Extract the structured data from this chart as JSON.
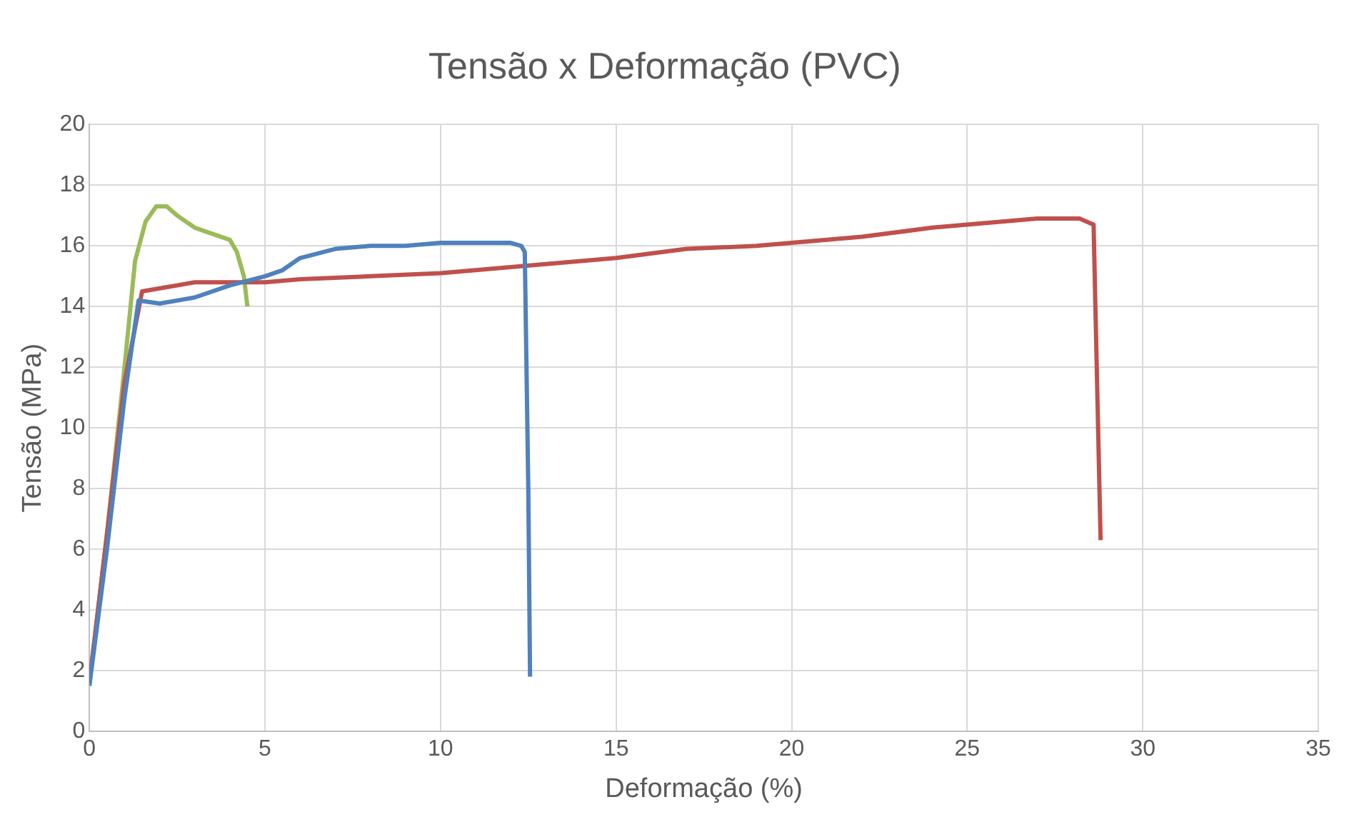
{
  "chart_data": {
    "type": "line",
    "title": "Tensão x Deformação (PVC)",
    "xlabel": "Deformação (%)",
    "ylabel": "Tensão (MPa)",
    "xlim": [
      0,
      35
    ],
    "xticks": [
      0,
      5,
      10,
      15,
      20,
      25,
      30,
      35
    ],
    "ylim": [
      0,
      20
    ],
    "yticks": [
      0,
      2,
      4,
      6,
      8,
      10,
      12,
      14,
      16,
      18,
      20
    ],
    "grid": true,
    "marker": "none",
    "line_style": "solid",
    "series": [
      {
        "color": "#4f81bd",
        "x": [
          0,
          0.5,
          1,
          1.4,
          2,
          3,
          4,
          5,
          5.5,
          6,
          7,
          8,
          9,
          10,
          11,
          12,
          12.3,
          12.4,
          12.5,
          12.55
        ],
        "values": [
          1.5,
          6,
          11,
          14.2,
          14.1,
          14.3,
          14.7,
          15.0,
          15.2,
          15.6,
          15.9,
          16.0,
          16.0,
          16.1,
          16.1,
          16.1,
          16.0,
          15.8,
          8,
          1.8
        ]
      },
      {
        "color": "#c0504d",
        "x": [
          0,
          0.5,
          1,
          1.5,
          2,
          3,
          4,
          5,
          6,
          8,
          10,
          12,
          13,
          15,
          17,
          19,
          20,
          22,
          24,
          26,
          27,
          28.2,
          28.6,
          28.8
        ],
        "values": [
          1.6,
          6.5,
          11.5,
          14.5,
          14.6,
          14.8,
          14.8,
          14.8,
          14.9,
          15.0,
          15.1,
          15.3,
          15.4,
          15.6,
          15.9,
          16.0,
          16.1,
          16.3,
          16.6,
          16.8,
          16.9,
          16.9,
          16.7,
          6.3
        ]
      },
      {
        "color": "#9bbb59",
        "x": [
          0,
          0.5,
          1,
          1.3,
          1.6,
          1.9,
          2.2,
          2.5,
          3,
          3.5,
          4,
          4.2,
          4.4,
          4.5
        ],
        "values": [
          1.6,
          6.5,
          12,
          15.5,
          16.8,
          17.3,
          17.3,
          17,
          16.6,
          16.4,
          16.2,
          15.8,
          15,
          14
        ]
      }
    ]
  }
}
